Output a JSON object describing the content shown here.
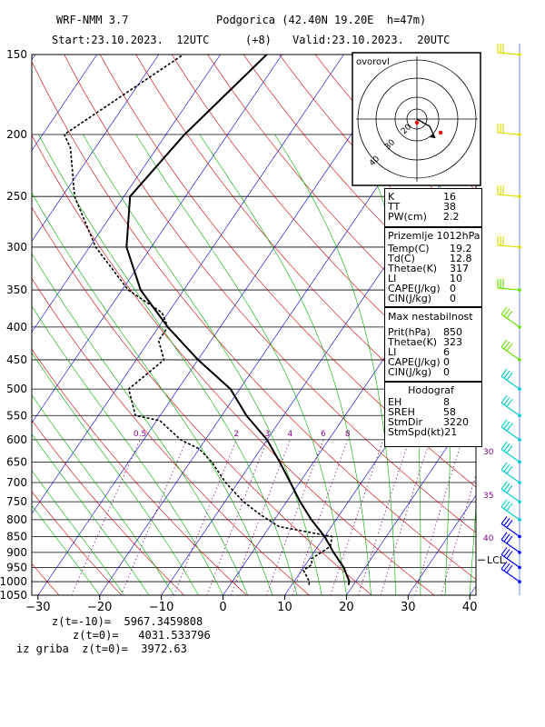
{
  "header": {
    "model": "WRF-NMM 3.7",
    "station": "Podgorica (42.40N 19.20E  h=47m)",
    "start": "Start:23.10.2023.  12UTC",
    "offset": "(+8)",
    "valid": "Valid:23.10.2023.  20UTC"
  },
  "indices_box": {
    "rows": [
      {
        "k": "K",
        "v": "16"
      },
      {
        "k": "TT",
        "v": "38"
      },
      {
        "k": "PW(cm)",
        "v": "2.2"
      }
    ]
  },
  "surface_box": {
    "title": "Prizemlje 1012hPa",
    "rows": [
      {
        "k": "Temp(C)",
        "v": "19.2"
      },
      {
        "k": "Td(C)",
        "v": "12.8"
      },
      {
        "k": "Thetae(K)",
        "v": "317"
      },
      {
        "k": "LI",
        "v": "10"
      },
      {
        "k": "CAPE(J/kg)",
        "v": "0"
      },
      {
        "k": "CIN(J/kg)",
        "v": "0"
      }
    ]
  },
  "instab_box": {
    "title": "Max nestabilnost",
    "rows": [
      {
        "k": "Prit(hPa)",
        "v": "850"
      },
      {
        "k": "Thetae(K)",
        "v": "323"
      },
      {
        "k": "LI",
        "v": "6"
      },
      {
        "k": "CAPE(J/kg)",
        "v": "0"
      },
      {
        "k": "CIN(J/kg)",
        "v": "0"
      }
    ]
  },
  "hodo_box": {
    "title": "Hodograf",
    "rows": [
      {
        "k": "EH",
        "v": "8"
      },
      {
        "k": "SREH",
        "v": "58"
      },
      {
        "k": "StmDir",
        "v": "3220"
      },
      {
        "k": "StmSpd(kt)",
        "v": "21"
      }
    ]
  },
  "hodograph": {
    "label": "ovorovl",
    "ring_labels": [
      "20",
      "30",
      "40"
    ]
  },
  "bottom": {
    "line1": "z(t=-10)=  5967.3459808",
    "line2": "z(t=0)=   4031.533796",
    "line3": "iz griba  z(t=0)=  3972.63"
  },
  "colors": {
    "isobar": "#000000",
    "isotherm": "#0000cc",
    "dry_adiabat": "#cc0000",
    "moist_adiabat": "#00aa00",
    "mixing_ratio": "#7f007f",
    "temperature": "#000000",
    "dewpoint": "#000000",
    "barb_upper": "#dddd00",
    "barb_mid": "#66dd00",
    "barb_low": "#00cccc",
    "barb_surface": "#0000ff"
  },
  "chart_data": {
    "type": "line",
    "title": "",
    "xlabel": "",
    "ylabel": "",
    "x_ticks": [
      -30,
      -20,
      -10,
      0,
      10,
      20,
      30,
      40
    ],
    "pressure_levels": [
      150,
      200,
      250,
      300,
      350,
      400,
      450,
      500,
      550,
      600,
      650,
      700,
      750,
      800,
      850,
      900,
      950,
      1000,
      1050
    ],
    "pressure_range": [
      150,
      1050
    ],
    "temperature_range_bottom": [
      -31,
      41
    ],
    "mixing_ratio_labels": [
      "0.5",
      "2",
      "3",
      "4",
      "6",
      "8"
    ],
    "mixing_ratio_label_positions_value": [
      0.5,
      2,
      3,
      4,
      6,
      8
    ],
    "moist_adiabat_labels": [
      "30",
      "35",
      "40"
    ],
    "lcl_label": "LCL",
    "lcl_pressure": 925,
    "series": [
      {
        "pressure": [
          1012,
          1000,
          950,
          900,
          850,
          800,
          750,
          700,
          650,
          600,
          550,
          500,
          450,
          400,
          350,
          300,
          250,
          200,
          150
        ],
        "values": [
          19.2,
          19.0,
          16.5,
          13.2,
          10.0,
          6.0,
          2.2,
          -1.5,
          -5.5,
          -10.0,
          -16.0,
          -21.5,
          -30.0,
          -38.5,
          -47.0,
          -54.0,
          -59.0,
          -57.0,
          -52.5
        ]
      },
      {
        "pressure": [
          1012,
          1000,
          960,
          940,
          920,
          900,
          880,
          850,
          820,
          800,
          780,
          750,
          700,
          650,
          620,
          600,
          560,
          550,
          500,
          450,
          420,
          400,
          380,
          350,
          300,
          250,
          210,
          200,
          150
        ],
        "values": [
          12.8,
          12.5,
          10.3,
          11.0,
          10.3,
          11.2,
          12.0,
          11.2,
          1.5,
          -1.0,
          -3.5,
          -7.0,
          -12.0,
          -16.5,
          -20.0,
          -24.0,
          -29.5,
          -34.0,
          -38.0,
          -35.5,
          -38.5,
          -38.5,
          -41.0,
          -49.0,
          -59.0,
          -68.0,
          -74.0,
          -76.5,
          -66.0
        ]
      }
    ]
  },
  "wind_barbs": {
    "pressure": [
      150,
      200,
      250,
      300,
      350,
      400,
      450,
      500,
      550,
      600,
      650,
      700,
      750,
      800,
      850,
      900,
      950,
      1000
    ]
  }
}
